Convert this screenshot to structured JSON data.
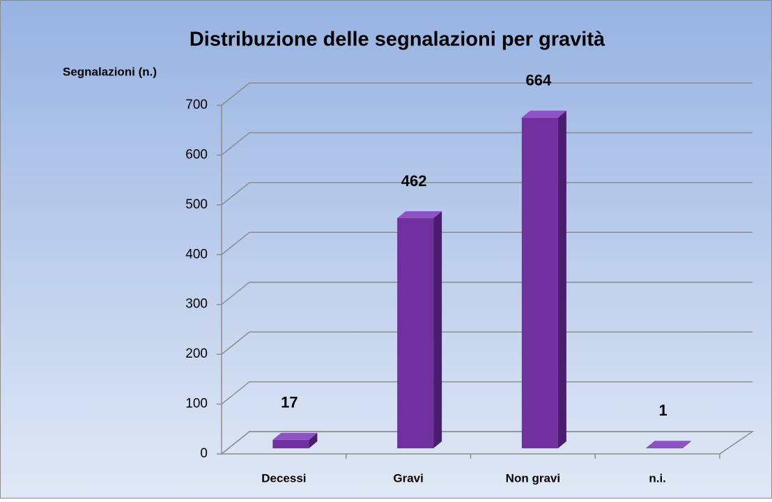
{
  "chart_data": {
    "type": "bar3d",
    "title": "Distribuzione delle segnalazioni per gravità",
    "y_label": "Segnalazioni (n.)",
    "categories": [
      "Decessi",
      "Gravi",
      "Non gravi",
      "n.i."
    ],
    "values": [
      17,
      462,
      664,
      1
    ],
    "color": "#7030a0",
    "ylim": [
      0,
      700
    ],
    "yticks": [
      0,
      100,
      200,
      300,
      400,
      500,
      600,
      700
    ],
    "grid": true
  }
}
